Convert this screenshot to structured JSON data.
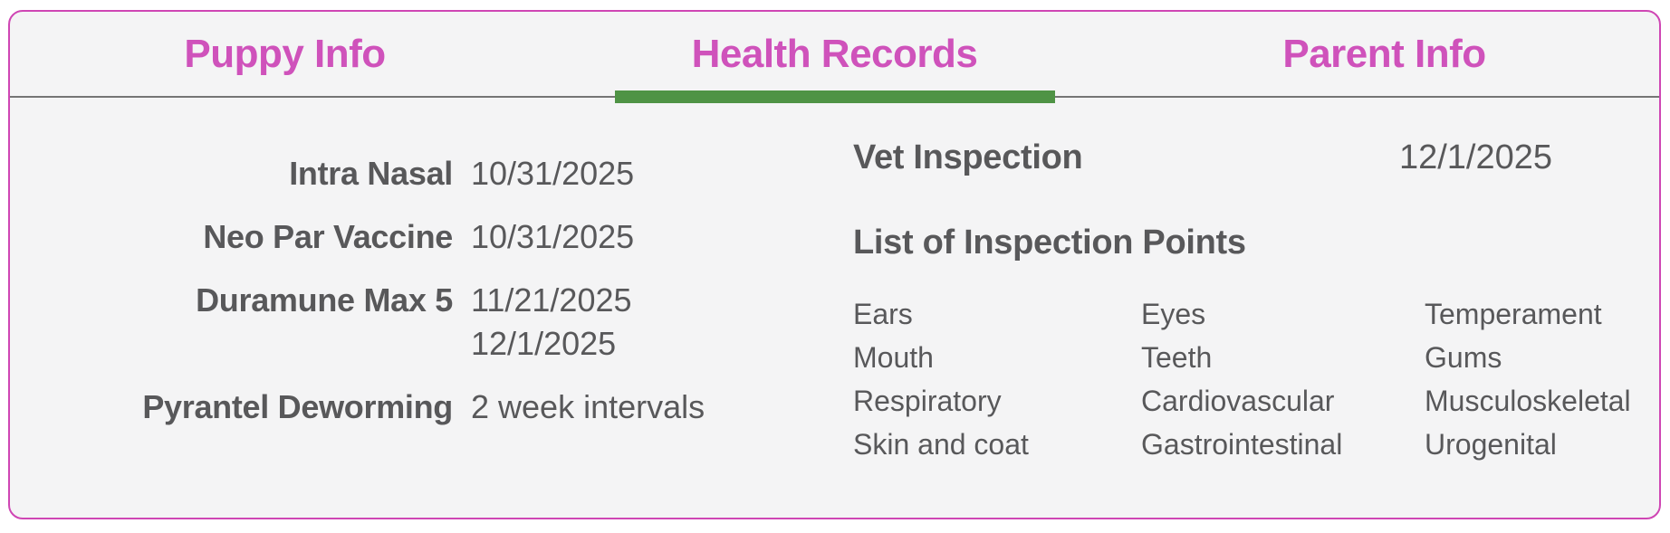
{
  "tabs": [
    {
      "label": "Puppy Info",
      "active": false
    },
    {
      "label": "Health Records",
      "active": true
    },
    {
      "label": "Parent Info",
      "active": false
    }
  ],
  "vaccines": {
    "rows": [
      {
        "label": "Intra Nasal",
        "values": [
          "10/31/2025"
        ]
      },
      {
        "label": "Neo Par Vaccine",
        "values": [
          "10/31/2025"
        ]
      },
      {
        "label": "Duramune Max 5",
        "values": [
          "11/21/2025",
          "12/1/2025"
        ]
      },
      {
        "label": "Pyrantel Deworming",
        "values": [
          "2 week intervals"
        ]
      }
    ]
  },
  "inspection": {
    "heading": "Vet Inspection",
    "date": "12/1/2025",
    "list_heading": "List of Inspection Points",
    "points": [
      "Ears",
      "Eyes",
      "Temperament",
      "Mouth",
      "Teeth",
      "Gums",
      "Respiratory",
      "Cardiovascular",
      "Musculoskeletal",
      "Skin and coat",
      "Gastrointestinal",
      "Urogenital"
    ]
  },
  "colors": {
    "accent_pink": "#cf52bb",
    "border_pink": "#cf46b4",
    "active_tab_green": "#4f9345",
    "divider_gray": "#757575",
    "text_gray": "#58585a",
    "card_background": "#f4f4f5"
  }
}
